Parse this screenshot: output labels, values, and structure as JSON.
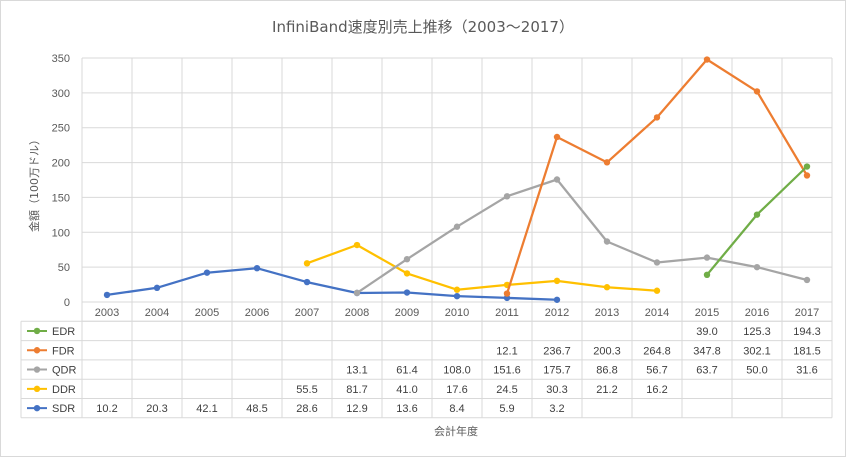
{
  "chart_data": {
    "type": "line",
    "title": "InfiniBand速度別売上推移（2003～2017）",
    "xlabel": "会計年度",
    "ylabel": "金額（100万ドル）",
    "ylim": [
      0,
      350
    ],
    "yticks": [
      "0",
      "50",
      "100",
      "150",
      "200",
      "250",
      "300",
      "350"
    ],
    "categories": [
      "2003",
      "2004",
      "2005",
      "2006",
      "2007",
      "2008",
      "2009",
      "2010",
      "2011",
      "2012",
      "2013",
      "2014",
      "2015",
      "2016",
      "2017"
    ],
    "grid": true,
    "data_table": true,
    "series": [
      {
        "name": "EDR",
        "color": "#70ad47",
        "values": [
          null,
          null,
          null,
          null,
          null,
          null,
          null,
          null,
          null,
          null,
          null,
          null,
          39.0,
          125.3,
          194.3
        ]
      },
      {
        "name": "FDR",
        "color": "#ed7d31",
        "values": [
          null,
          null,
          null,
          null,
          null,
          null,
          null,
          null,
          12.1,
          236.7,
          200.3,
          264.8,
          347.8,
          302.1,
          181.5
        ]
      },
      {
        "name": "QDR",
        "color": "#a5a5a5",
        "values": [
          null,
          null,
          null,
          null,
          null,
          13.1,
          61.4,
          108.0,
          151.6,
          175.7,
          86.8,
          56.7,
          63.7,
          50.0,
          31.6
        ]
      },
      {
        "name": "DDR",
        "color": "#ffc000",
        "values": [
          null,
          null,
          null,
          null,
          55.5,
          81.7,
          41.0,
          17.6,
          24.5,
          30.3,
          21.2,
          16.2,
          null,
          null,
          null
        ]
      },
      {
        "name": "SDR",
        "color": "#4472c4",
        "values": [
          10.2,
          20.3,
          42.1,
          48.5,
          28.6,
          12.9,
          13.6,
          8.4,
          5.9,
          3.2,
          null,
          null,
          null,
          null,
          null
        ]
      }
    ]
  }
}
